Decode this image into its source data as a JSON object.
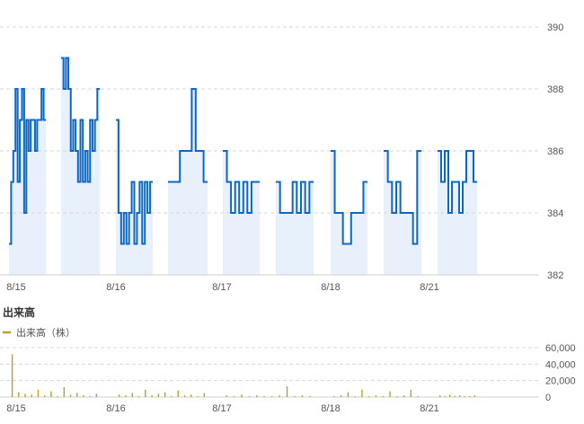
{
  "volume_panel": {
    "title": "出来高",
    "legend_label": "出来高（株）",
    "color": "#b8a224"
  },
  "chart_data": [
    {
      "type": "line",
      "name": "price",
      "color": "#0a67c7",
      "area_color": "#e8f1fb",
      "grid": true,
      "ylim": [
        382,
        390
      ],
      "y_ticks": [
        "382",
        "384",
        "386",
        "388",
        "390"
      ],
      "x_ticks": [
        "8/15",
        "8/16",
        "8/17",
        "8/18",
        "8/21"
      ],
      "sessions": [
        {
          "date": "8/15",
          "am": [
            383,
            385,
            386,
            388,
            385,
            387,
            388,
            384,
            387,
            386,
            387,
            387,
            386,
            387,
            387,
            388,
            387
          ],
          "pm": [
            389,
            388,
            389,
            388,
            386,
            387,
            386,
            385,
            387,
            385,
            386,
            385,
            387,
            386,
            387,
            388
          ]
        },
        {
          "date": "8/16",
          "am": [
            387,
            384,
            383,
            384,
            383,
            384,
            385,
            383,
            384,
            385,
            383,
            385,
            384,
            385
          ],
          "pm": [
            385,
            385,
            385,
            386,
            386,
            386,
            388,
            386,
            386,
            385
          ]
        },
        {
          "date": "8/17",
          "am": [
            386,
            385,
            384,
            385,
            384,
            385,
            384,
            385,
            385
          ],
          "pm": [
            385,
            384,
            384,
            384,
            385,
            384,
            385,
            384,
            385
          ]
        },
        {
          "date": "8/18",
          "am": [
            386,
            384,
            384,
            383,
            383,
            384,
            384,
            384,
            385
          ],
          "pm": [
            386,
            385,
            384,
            385,
            384,
            384,
            384,
            383,
            386
          ]
        },
        {
          "date": "8/21",
          "am": [
            386,
            385,
            386,
            384,
            385,
            385,
            384,
            385,
            386,
            386,
            385
          ]
        }
      ]
    },
    {
      "type": "bar",
      "name": "出来高（株）",
      "ylim": [
        0,
        60000
      ],
      "y_ticks": [
        "0",
        "20,000",
        "40,000",
        "60,000"
      ],
      "x_ticks": [
        "8/15",
        "8/16",
        "8/17",
        "8/18",
        "8/21"
      ],
      "spikes": [
        {
          "date": "8/15",
          "values": [
            52000,
            6000,
            4000,
            3000,
            9000,
            2000,
            7000,
            1000,
            12000,
            3000,
            5000,
            2000,
            1000,
            4000
          ]
        },
        {
          "date": "8/16",
          "values": [
            3000,
            2000,
            5000,
            1000,
            9000,
            2000,
            4000,
            6000,
            1000,
            8000,
            2000,
            3000,
            1000,
            5000
          ]
        },
        {
          "date": "8/17",
          "values": [
            2000,
            1000,
            3000,
            1000,
            2000,
            1000,
            1000,
            2000,
            13000,
            1000,
            2000,
            1000
          ]
        },
        {
          "date": "8/18",
          "values": [
            1000,
            2000,
            6000,
            1000,
            9000,
            1000,
            2000,
            1000,
            7000,
            1000,
            2000,
            9000,
            1000
          ]
        },
        {
          "date": "8/21",
          "values": [
            2000,
            1000,
            3000,
            1000,
            2000,
            1000,
            1000,
            2000
          ]
        }
      ]
    }
  ]
}
